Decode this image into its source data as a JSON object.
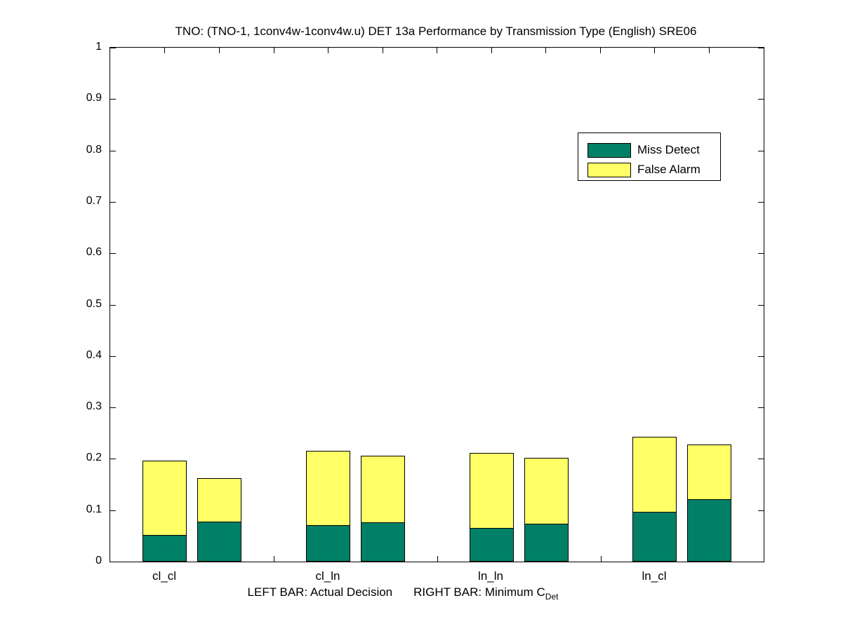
{
  "title": "TNO: (TNO-1, 1conv4w-1conv4w.u) DET 13a Performance by Transmission Type (English) SRE06",
  "footer": {
    "left_label": "LEFT BAR: Actual Decision",
    "right_label": "RIGHT BAR: Minimum C",
    "right_subscript": "Det"
  },
  "legend": {
    "items": [
      {
        "label": "Miss Detect",
        "color": "#008066"
      },
      {
        "label": "False Alarm",
        "color": "#ffff66"
      }
    ]
  },
  "axes": {
    "ytick_labels": [
      "0",
      "0.1",
      "0.2",
      "0.3",
      "0.4",
      "0.5",
      "0.6",
      "0.7",
      "0.8",
      "0.9",
      "1"
    ],
    "xtick_labels": [
      "cl_cl",
      "cl_ln",
      "ln_ln",
      "ln_cl"
    ]
  },
  "chart_data": {
    "type": "bar",
    "stacked": true,
    "title": "TNO: (TNO-1, 1conv4w-1conv4w.u) DET 13a Performance by Transmission Type (English) SRE06",
    "categories": [
      "cl_cl",
      "cl_ln",
      "ln_ln",
      "ln_cl"
    ],
    "bar_variants": [
      "Actual Decision",
      "Minimum CDet"
    ],
    "series": [
      {
        "name": "Miss Detect",
        "color": "#008066",
        "values": {
          "actual_decision": [
            0.052,
            0.071,
            0.066,
            0.097
          ],
          "minimum_cdet": [
            0.078,
            0.077,
            0.074,
            0.122
          ]
        }
      },
      {
        "name": "False Alarm",
        "color": "#ffff66",
        "values": {
          "actual_decision": [
            0.144,
            0.145,
            0.146,
            0.146
          ],
          "minimum_cdet": [
            0.084,
            0.129,
            0.128,
            0.106
          ]
        }
      }
    ],
    "stacked_totals": {
      "actual_decision": [
        0.196,
        0.216,
        0.212,
        0.243
      ],
      "minimum_cdet": [
        0.162,
        0.206,
        0.202,
        0.228
      ]
    },
    "ylim": [
      0,
      1
    ],
    "ytick_step": 0.1,
    "xlabel": "LEFT BAR: Actual Decision    RIGHT BAR: Minimum C_Det",
    "ylabel": "",
    "legend_position": "upper-right-inside",
    "grid": false
  }
}
